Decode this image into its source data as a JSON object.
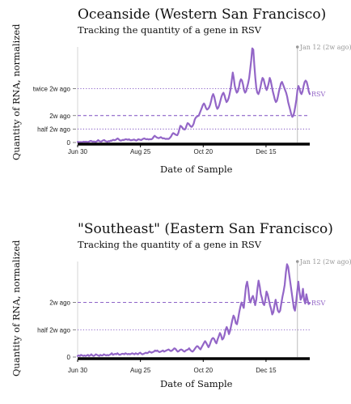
{
  "colors": {
    "series": "#9366c7",
    "ref_line": "#7d4fc0",
    "annotation": "#999999",
    "axis": "#000000"
  },
  "chart_data": [
    {
      "type": "line",
      "title": "Oceanside (Western San Francisco)",
      "subtitle": "Tracking the quantity of a gene in RSV",
      "xlabel": "Date of Sample",
      "ylabel": "Quantity of RNA, normalized",
      "x_tick_labels": [
        "Jun 30",
        "Aug 25",
        "Oct 20",
        "Dec 15"
      ],
      "y_ticks": [
        {
          "label": "0",
          "value": 0,
          "style": "solid"
        },
        {
          "label": "half 2w ago",
          "value": 0.5,
          "style": "dotted"
        },
        {
          "label": "2w ago",
          "value": 1,
          "style": "dashed"
        },
        {
          "label": "twice 2w ago",
          "value": 2,
          "style": "dotted"
        }
      ],
      "ylim": [
        0,
        3.55
      ],
      "x_range_days": [
        0,
        207
      ],
      "marker": {
        "day": 196,
        "label": "Jan 12 (2w ago)"
      },
      "series": [
        {
          "name": "RSV",
          "values": [
            0.02,
            0.02,
            0.01,
            0.02,
            0.01,
            0.02,
            0.03,
            0.02,
            0.03,
            0.02,
            0.02,
            0.03,
            0.05,
            0.06,
            0.04,
            0.03,
            0.04,
            0.02,
            0.03,
            0.05,
            0.09,
            0.05,
            0.04,
            0.03,
            0.06,
            0.08,
            0.09,
            0.05,
            0.04,
            0.02,
            0.05,
            0.04,
            0.07,
            0.06,
            0.09,
            0.1,
            0.08,
            0.1,
            0.13,
            0.15,
            0.12,
            0.08,
            0.07,
            0.08,
            0.1,
            0.09,
            0.11,
            0.12,
            0.11,
            0.1,
            0.12,
            0.09,
            0.08,
            0.09,
            0.1,
            0.11,
            0.09,
            0.07,
            0.09,
            0.12,
            0.11,
            0.1,
            0.09,
            0.12,
            0.14,
            0.15,
            0.13,
            0.12,
            0.13,
            0.11,
            0.12,
            0.12,
            0.12,
            0.15,
            0.21,
            0.25,
            0.22,
            0.19,
            0.17,
            0.16,
            0.18,
            0.2,
            0.17,
            0.15,
            0.16,
            0.14,
            0.13,
            0.14,
            0.13,
            0.14,
            0.18,
            0.23,
            0.3,
            0.35,
            0.33,
            0.3,
            0.28,
            0.27,
            0.35,
            0.48,
            0.62,
            0.6,
            0.55,
            0.5,
            0.48,
            0.5,
            0.62,
            0.72,
            0.7,
            0.65,
            0.6,
            0.58,
            0.62,
            0.7,
            0.85,
            0.92,
            0.96,
            0.98,
            1.0,
            1.1,
            1.2,
            1.3,
            1.4,
            1.45,
            1.38,
            1.28,
            1.22,
            1.25,
            1.3,
            1.4,
            1.55,
            1.72,
            1.8,
            1.7,
            1.52,
            1.35,
            1.25,
            1.3,
            1.4,
            1.55,
            1.7,
            1.8,
            1.85,
            1.75,
            1.6,
            1.5,
            1.55,
            1.65,
            1.8,
            2.0,
            2.3,
            2.6,
            2.4,
            2.1,
            1.95,
            1.85,
            1.9,
            2.05,
            2.25,
            2.35,
            2.3,
            2.15,
            1.95,
            1.85,
            1.9,
            2.05,
            2.2,
            2.4,
            2.7,
            3.05,
            3.5,
            3.45,
            2.9,
            2.4,
            2.0,
            1.85,
            1.8,
            1.9,
            2.05,
            2.25,
            2.4,
            2.35,
            2.2,
            2.05,
            1.95,
            2.05,
            2.2,
            2.4,
            2.3,
            2.1,
            1.9,
            1.75,
            1.6,
            1.5,
            1.55,
            1.7,
            1.9,
            2.05,
            2.2,
            2.25,
            2.15,
            2.05,
            1.95,
            1.85,
            1.7,
            1.5,
            1.35,
            1.2,
            1.05,
            0.95,
            1.0,
            1.15,
            1.35,
            1.6,
            1.95,
            2.1,
            2.0,
            1.85,
            1.8,
            1.9,
            2.1,
            2.25,
            2.3,
            2.25,
            2.1,
            1.9,
            1.8
          ]
        }
      ]
    },
    {
      "type": "line",
      "title": "\"Southeast\" (Eastern San Francisco)",
      "subtitle": "Tracking the quantity of a gene in RSV",
      "xlabel": "Date of Sample",
      "ylabel": "Quantity of RNA, normalized",
      "x_tick_labels": [
        "Jun 30",
        "Aug 25",
        "Oct 20",
        "Dec 15"
      ],
      "y_ticks": [
        {
          "label": "0",
          "value": 0,
          "style": "solid"
        },
        {
          "label": "half 2w ago",
          "value": 0.5,
          "style": "dotted"
        },
        {
          "label": "2w ago",
          "value": 1,
          "style": "dashed"
        }
      ],
      "ylim": [
        0,
        1.75
      ],
      "x_range_days": [
        0,
        207
      ],
      "marker": {
        "day": 196,
        "label": "Jan 12 (2w ago)"
      },
      "series": [
        {
          "name": "RSV",
          "values": [
            0.02,
            0.03,
            0.02,
            0.04,
            0.03,
            0.02,
            0.03,
            0.02,
            0.03,
            0.04,
            0.02,
            0.03,
            0.05,
            0.03,
            0.02,
            0.03,
            0.05,
            0.04,
            0.03,
            0.02,
            0.04,
            0.03,
            0.03,
            0.05,
            0.04,
            0.03,
            0.04,
            0.03,
            0.04,
            0.05,
            0.07,
            0.04,
            0.05,
            0.06,
            0.05,
            0.07,
            0.05,
            0.04,
            0.05,
            0.06,
            0.06,
            0.05,
            0.07,
            0.06,
            0.05,
            0.06,
            0.05,
            0.06,
            0.07,
            0.06,
            0.05,
            0.07,
            0.06,
            0.05,
            0.07,
            0.08,
            0.06,
            0.05,
            0.06,
            0.07,
            0.08,
            0.07,
            0.08,
            0.1,
            0.09,
            0.08,
            0.09,
            0.1,
            0.12,
            0.11,
            0.12,
            0.1,
            0.09,
            0.1,
            0.11,
            0.12,
            0.1,
            0.11,
            0.12,
            0.13,
            0.14,
            0.12,
            0.11,
            0.12,
            0.14,
            0.16,
            0.15,
            0.12,
            0.1,
            0.11,
            0.13,
            0.14,
            0.13,
            0.11,
            0.1,
            0.12,
            0.13,
            0.14,
            0.16,
            0.13,
            0.11,
            0.1,
            0.12,
            0.15,
            0.18,
            0.2,
            0.19,
            0.16,
            0.14,
            0.18,
            0.22,
            0.26,
            0.29,
            0.26,
            0.22,
            0.18,
            0.22,
            0.28,
            0.33,
            0.35,
            0.33,
            0.28,
            0.25,
            0.32,
            0.38,
            0.44,
            0.4,
            0.32,
            0.34,
            0.4,
            0.5,
            0.55,
            0.5,
            0.42,
            0.48,
            0.58,
            0.68,
            0.76,
            0.72,
            0.62,
            0.6,
            0.7,
            0.82,
            0.92,
            1.0,
            0.95,
            0.9,
            1.1,
            1.3,
            1.38,
            1.25,
            1.05,
            1.0,
            1.08,
            1.12,
            1.05,
            0.95,
            1.05,
            1.25,
            1.4,
            1.3,
            1.15,
            1.08,
            0.98,
            0.95,
            1.05,
            1.2,
            1.15,
            1.05,
            0.95,
            0.88,
            0.78,
            0.82,
            0.95,
            1.05,
            0.95,
            0.85,
            0.82,
            0.85,
            0.98,
            1.1,
            1.2,
            1.32,
            1.55,
            1.7,
            1.65,
            1.5,
            1.35,
            1.2,
            1.05,
            0.9,
            0.85,
            1.0,
            1.2,
            1.38,
            1.2,
            1.05,
            1.1,
            1.25,
            1.05,
            0.98,
            1.15,
            1.05,
            0.97,
            0.99
          ]
        }
      ]
    }
  ]
}
